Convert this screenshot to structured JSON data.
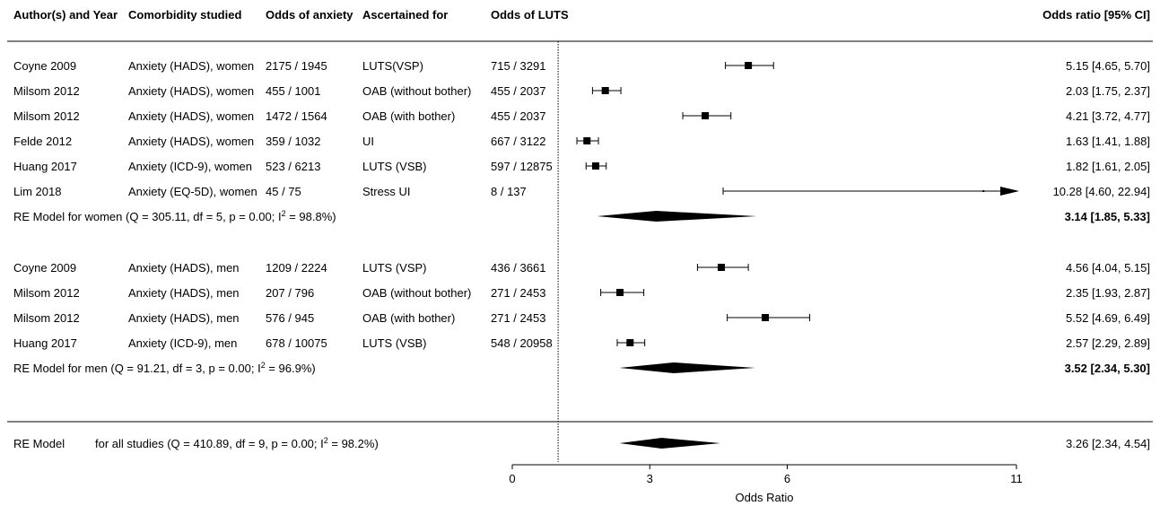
{
  "chart_data": {
    "type": "forest",
    "headers": {
      "author": "Author(s) and Year",
      "comorbidity": "Comorbidity studied",
      "odds_anxiety": "Odds of anxiety",
      "ascertained": "Ascertained for",
      "odds_luts": "Odds of LUTS",
      "or_ci": "Odds ratio [95% CI]"
    },
    "xlabel": "Odds Ratio",
    "xticks": [
      0,
      3,
      6,
      11
    ],
    "xlim": [
      0,
      11
    ],
    "reference_line": 1,
    "women_studies": [
      {
        "author": "Coyne 2009",
        "comorbidity": "Anxiety (HADS), women",
        "odds_anxiety": "2175 / 1945",
        "ascertained": "LUTS(VSP)",
        "odds_luts": "715 / 3291",
        "or": 5.15,
        "lo": 4.65,
        "hi": 5.7,
        "or_text": "5.15 [4.65,  5.70]"
      },
      {
        "author": "Milsom 2012",
        "comorbidity": "Anxiety (HADS), women",
        "odds_anxiety": "455 / 1001",
        "ascertained": "OAB (without bother)",
        "odds_luts": "455 / 2037",
        "or": 2.03,
        "lo": 1.75,
        "hi": 2.37,
        "or_text": "2.03 [1.75,  2.37]"
      },
      {
        "author": "Milsom 2012",
        "comorbidity": "Anxiety (HADS), women",
        "odds_anxiety": "1472 / 1564",
        "ascertained": "OAB (with bother)",
        "odds_luts": "455 / 2037",
        "or": 4.21,
        "lo": 3.72,
        "hi": 4.77,
        "or_text": "4.21 [3.72,  4.77]"
      },
      {
        "author": "Felde 2012",
        "comorbidity": "Anxiety (HADS), women",
        "odds_anxiety": "359 / 1032",
        "ascertained": "UI",
        "odds_luts": "667 / 3122",
        "or": 1.63,
        "lo": 1.41,
        "hi": 1.88,
        "or_text": "1.63 [1.41,  1.88]"
      },
      {
        "author": "Huang 2017",
        "comorbidity": "Anxiety (ICD-9), women",
        "odds_anxiety": "523 / 6213",
        "ascertained": "LUTS (VSB)",
        "odds_luts": "597 / 12875",
        "or": 1.82,
        "lo": 1.61,
        "hi": 2.05,
        "or_text": "1.82 [1.61,  2.05]"
      },
      {
        "author": "Lim 2018",
        "comorbidity": "Anxiety (EQ-5D), women",
        "odds_anxiety": "45 / 75",
        "ascertained": "Stress UI",
        "odds_luts": "8 / 137",
        "or": 10.28,
        "lo": 4.6,
        "hi": 22.94,
        "or_text": "10.28 [4.60, 22.94]"
      }
    ],
    "women_summary": {
      "label_main": "RE Model for women (Q = 305.11, df = 5, p = 0.00; I",
      "label_sup": "2",
      "label_end": " = 98.8%)",
      "or": 3.14,
      "lo": 1.85,
      "hi": 5.33,
      "or_text": "3.14 [1.85, 5.33]"
    },
    "men_studies": [
      {
        "author": "Coyne 2009",
        "comorbidity": "Anxiety (HADS), men",
        "odds_anxiety": "1209 / 2224",
        "ascertained": "LUTS (VSP)",
        "odds_luts": "436 / 3661",
        "or": 4.56,
        "lo": 4.04,
        "hi": 5.15,
        "or_text": "4.56 [4.04,  5.15]"
      },
      {
        "author": "Milsom 2012",
        "comorbidity": "Anxiety (HADS), men",
        "odds_anxiety": "207 / 796",
        "ascertained": "OAB (without bother)",
        "odds_luts": "271 / 2453",
        "or": 2.35,
        "lo": 1.93,
        "hi": 2.87,
        "or_text": "2.35 [1.93,  2.87]"
      },
      {
        "author": "Milsom 2012",
        "comorbidity": "Anxiety (HADS), men",
        "odds_anxiety": "576 / 945",
        "ascertained": "OAB (with bother)",
        "odds_luts": "271 / 2453",
        "or": 5.52,
        "lo": 4.69,
        "hi": 6.49,
        "or_text": "5.52 [4.69,  6.49]"
      },
      {
        "author": "Huang 2017",
        "comorbidity": "Anxiety (ICD-9), men",
        "odds_anxiety": "678 / 10075",
        "ascertained": "LUTS (VSB)",
        "odds_luts": "548 / 20958",
        "or": 2.57,
        "lo": 2.29,
        "hi": 2.89,
        "or_text": "2.57 [2.29,  2.89]"
      }
    ],
    "men_summary": {
      "label_main": "RE Model for men (Q = 91.21, df = 3, p = 0.00; I",
      "label_sup": "2",
      "label_end": " = 96.9%)",
      "or": 3.52,
      "lo": 2.34,
      "hi": 5.3,
      "or_text": "3.52 [2.34, 5.30]"
    },
    "overall": {
      "label_model": "RE Model",
      "label_main": "for all studies (Q = 410.89, df = 9, p = 0.00; I",
      "label_sup": "2",
      "label_end": " = 98.2%)",
      "or": 3.26,
      "lo": 2.34,
      "hi": 4.54,
      "or_text": "3.26 [2.34,  4.54]"
    }
  }
}
